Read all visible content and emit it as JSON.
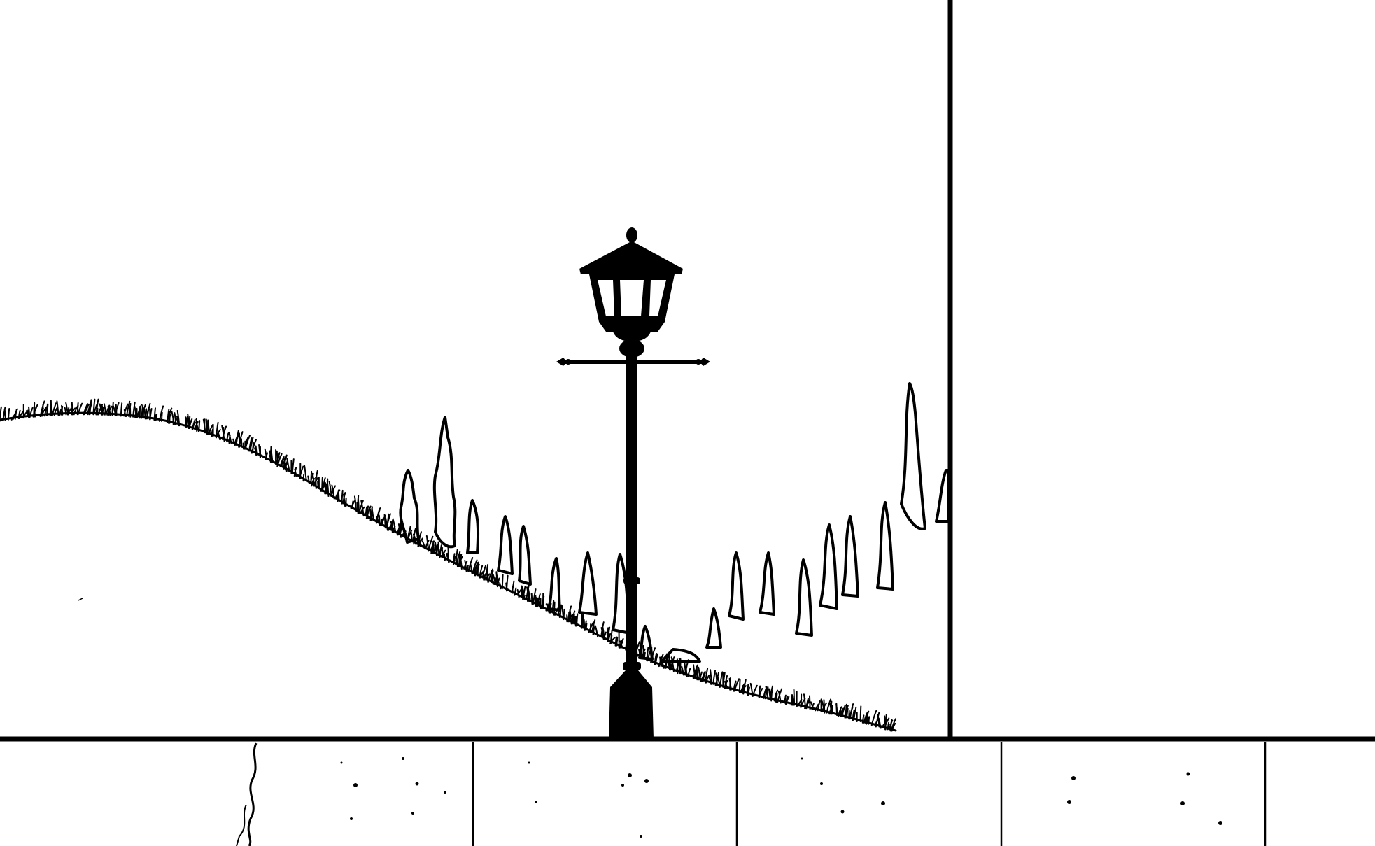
{
  "scene": {
    "style": "black ink line drawing on white, comic-panel style",
    "colors": {
      "ink": "#000000",
      "paper": "#ffffff"
    },
    "subjects": [
      "street-lamp",
      "grassy-hill",
      "cypress-trees",
      "wall-edge",
      "paved-sidewalk"
    ]
  }
}
